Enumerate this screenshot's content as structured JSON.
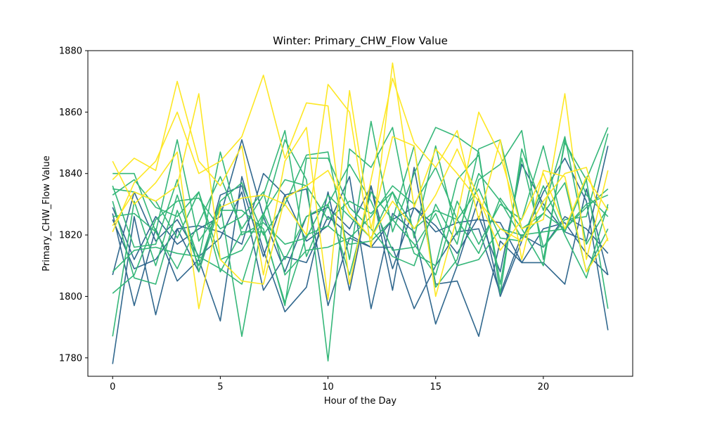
{
  "chart_data": {
    "type": "line",
    "title": "Winter: Primary_CHW_Flow Value",
    "xlabel": "Hour of the Day",
    "ylabel": "Primary_CHW_Flow Value",
    "xlim": [
      -1.15,
      24.15
    ],
    "ylim": [
      1774,
      1880
    ],
    "x_ticks": [
      0,
      5,
      10,
      15,
      20
    ],
    "y_ticks": [
      1780,
      1800,
      1820,
      1840,
      1860,
      1880
    ],
    "grid": false,
    "legend": "none",
    "x": [
      0,
      1,
      2,
      3,
      4,
      5,
      6,
      7,
      8,
      9,
      10,
      11,
      12,
      13,
      14,
      15,
      16,
      17,
      18,
      19,
      20,
      21,
      22,
      23
    ],
    "series": [
      {
        "color": "#31688e",
        "values": [
          1778,
          1826,
          1794,
          1822,
          1808,
          1833,
          1836,
          1813,
          1833,
          1818,
          1823,
          1839,
          1796,
          1827,
          1821,
          1791,
          1810,
          1832,
          1800,
          1818,
          1834,
          1845,
          1831,
          1789
        ]
      },
      {
        "color": "#31688e",
        "values": [
          1827,
          1797,
          1822,
          1805,
          1812,
          1792,
          1839,
          1815,
          1795,
          1803,
          1834,
          1802,
          1836,
          1802,
          1842,
          1804,
          1805,
          1787,
          1818,
          1811,
          1811,
          1804,
          1835,
          1807
        ]
      },
      {
        "color": "#31688e",
        "values": [
          1829,
          1812,
          1826,
          1817,
          1822,
          1826,
          1851,
          1826,
          1808,
          1826,
          1829,
          1822,
          1836,
          1809,
          1829,
          1823,
          1814,
          1826,
          1808,
          1843,
          1830,
          1821,
          1818,
          1849
        ]
      },
      {
        "color": "#31688e",
        "values": [
          1807,
          1834,
          1818,
          1825,
          1813,
          1819,
          1834,
          1802,
          1813,
          1811,
          1826,
          1820,
          1816,
          1816,
          1796,
          1810,
          1821,
          1822,
          1801,
          1820,
          1816,
          1826,
          1822,
          1814
        ]
      },
      {
        "color": "#31688e",
        "values": [
          1825,
          1809,
          1812,
          1822,
          1823,
          1821,
          1817,
          1840,
          1833,
          1835,
          1797,
          1819,
          1816,
          1825,
          1829,
          1821,
          1824,
          1825,
          1824,
          1811,
          1822,
          1824,
          1814,
          1807
        ]
      },
      {
        "color": "#35b779",
        "values": [
          1831,
          1806,
          1804,
          1828,
          1810,
          1831,
          1837,
          1820,
          1830,
          1846,
          1847,
          1812,
          1857,
          1821,
          1840,
          1855,
          1852,
          1847,
          1801,
          1848,
          1828,
          1852,
          1817,
          1829
        ]
      },
      {
        "color": "#35b779",
        "values": [
          1836,
          1816,
          1817,
          1838,
          1808,
          1830,
          1787,
          1826,
          1851,
          1838,
          1779,
          1848,
          1842,
          1855,
          1819,
          1849,
          1820,
          1840,
          1831,
          1819,
          1827,
          1837,
          1808,
          1822
        ]
      },
      {
        "color": "#35b779",
        "values": [
          1840,
          1840,
          1821,
          1851,
          1818,
          1828,
          1828,
          1822,
          1797,
          1845,
          1845,
          1829,
          1822,
          1813,
          1810,
          1830,
          1817,
          1848,
          1851,
          1822,
          1810,
          1851,
          1833,
          1826
        ]
      },
      {
        "color": "#35b779",
        "values": [
          1826,
          1827,
          1821,
          1809,
          1824,
          1839,
          1822,
          1833,
          1854,
          1813,
          1830,
          1807,
          1834,
          1825,
          1849,
          1803,
          1812,
          1838,
          1843,
          1854,
          1812,
          1850,
          1838,
          1796
        ]
      },
      {
        "color": "#35b779",
        "values": [
          1801,
          1807,
          1825,
          1831,
          1832,
          1822,
          1826,
          1834,
          1807,
          1815,
          1816,
          1819,
          1826,
          1836,
          1830,
          1842,
          1825,
          1814,
          1832,
          1822,
          1827,
          1822,
          1829,
          1835
        ]
      },
      {
        "color": "#35b779",
        "values": [
          1787,
          1831,
          1810,
          1833,
          1812,
          1847,
          1820,
          1824,
          1817,
          1819,
          1833,
          1826,
          1819,
          1834,
          1814,
          1810,
          1838,
          1846,
          1804,
          1845,
          1816,
          1825,
          1826,
          1853
        ]
      },
      {
        "color": "#35b779",
        "values": [
          1833,
          1838,
          1829,
          1826,
          1834,
          1812,
          1815,
          1827,
          1838,
          1836,
          1825,
          1831,
          1827,
          1834,
          1822,
          1828,
          1825,
          1835,
          1819,
          1818,
          1836,
          1820,
          1806,
          1830
        ]
      },
      {
        "color": "#35b779",
        "values": [
          1808,
          1815,
          1816,
          1814,
          1813,
          1809,
          1804,
          1827,
          1812,
          1826,
          1830,
          1843,
          1831,
          1815,
          1816,
          1827,
          1810,
          1812,
          1822,
          1820,
          1821,
          1822,
          1830,
          1833
        ]
      },
      {
        "color": "#35b779",
        "values": [
          1835,
          1834,
          1831,
          1819,
          1834,
          1808,
          1821,
          1821,
          1798,
          1820,
          1823,
          1817,
          1818,
          1825,
          1817,
          1807,
          1831,
          1817,
          1830,
          1825,
          1849,
          1821,
          1838,
          1855
        ]
      },
      {
        "color": "#fde725",
        "values": [
          1821,
          1837,
          1844,
          1860,
          1840,
          1844,
          1852,
          1872,
          1845,
          1863,
          1862,
          1804,
          1838,
          1871,
          1850,
          1842,
          1854,
          1825,
          1851,
          1812,
          1841,
          1839,
          1808,
          1819
        ]
      },
      {
        "color": "#fde725",
        "values": [
          1838,
          1845,
          1841,
          1870,
          1844,
          1836,
          1849,
          1807,
          1844,
          1855,
          1799,
          1867,
          1822,
          1852,
          1849,
          1800,
          1826,
          1860,
          1846,
          1822,
          1825,
          1866,
          1812,
          1841
        ]
      },
      {
        "color": "#fde725",
        "values": [
          1844,
          1830,
          1837,
          1847,
          1796,
          1829,
          1832,
          1833,
          1830,
          1820,
          1869,
          1860,
          1816,
          1876,
          1829,
          1848,
          1840,
          1831,
          1822,
          1818,
          1831,
          1840,
          1842,
          1818
        ]
      },
      {
        "color": "#fde725",
        "values": [
          1823,
          1834,
          1831,
          1836,
          1866,
          1812,
          1805,
          1804,
          1832,
          1836,
          1841,
          1827,
          1819,
          1831,
          1822,
          1833,
          1848,
          1832,
          1815,
          1825,
          1840,
          1822,
          1839,
          1828
        ]
      }
    ]
  }
}
